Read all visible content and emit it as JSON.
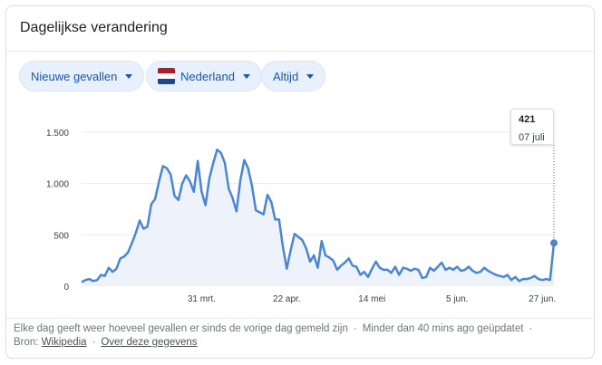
{
  "card": {
    "title": "Dagelijkse verandering"
  },
  "filters": {
    "metric": "Nieuwe gevallen",
    "region": "Nederland",
    "period": "Altijd"
  },
  "colors": {
    "line": "#4a86d4",
    "area_fill": "#eef3fb",
    "chip_bg": "#e8f0fe",
    "chip_text": "#1a56b0",
    "flag": [
      "#ae1c28",
      "#ffffff",
      "#21468b"
    ]
  },
  "tooltip": {
    "value": "421",
    "date": "07 juli"
  },
  "footer": {
    "description": "Elke dag geeft weer hoeveel gevallen er sinds de vorige dag gemeld zijn",
    "updated": "Minder dan 40 mins ago geüpdatet",
    "source_label": "Bron:",
    "source_link": "Wikipedia",
    "about_link": "Over deze gegevens"
  },
  "chart_data": {
    "type": "area",
    "title": "",
    "xlabel": "",
    "ylabel": "",
    "ylim": [
      0,
      1500
    ],
    "yticks": [
      0,
      500,
      1000,
      1500
    ],
    "ytick_labels": [
      "0",
      "500",
      "1.000",
      "1.500"
    ],
    "xticks": [
      {
        "label": "31 mrt.",
        "day": 31
      },
      {
        "label": "22 apr.",
        "day": 53
      },
      {
        "label": "14 mei",
        "day": 75
      },
      {
        "label": "5 jun.",
        "day": 97
      },
      {
        "label": "27 jun.",
        "day": 119
      }
    ],
    "x_start": "2020-02-27",
    "x_end": "2020-07-07",
    "series": [
      {
        "values": [
          40,
          60,
          70,
          50,
          60,
          110,
          100,
          180,
          140,
          170,
          270,
          290,
          330,
          420,
          520,
          640,
          560,
          580,
          800,
          850,
          1020,
          1170,
          1150,
          1090,
          880,
          840,
          1000,
          1080,
          1020,
          920,
          1220,
          920,
          790,
          1050,
          1200,
          1330,
          1300,
          1200,
          950,
          860,
          730,
          1030,
          1230,
          1150,
          980,
          740,
          720,
          700,
          890,
          820,
          650,
          650,
          380,
          170,
          350,
          510,
          480,
          450,
          370,
          240,
          300,
          180,
          440,
          300,
          280,
          250,
          160,
          200,
          230,
          270,
          200,
          190,
          110,
          140,
          90,
          170,
          240,
          180,
          160,
          160,
          130,
          190,
          110,
          180,
          170,
          150,
          170,
          160,
          80,
          90,
          180,
          150,
          190,
          230,
          160,
          180,
          160,
          190,
          150,
          160,
          190,
          150,
          130,
          140,
          180,
          150,
          130,
          110,
          100,
          90,
          110,
          60,
          90,
          50,
          70,
          70,
          80,
          100,
          70,
          60,
          70,
          60,
          421
        ]
      }
    ]
  }
}
